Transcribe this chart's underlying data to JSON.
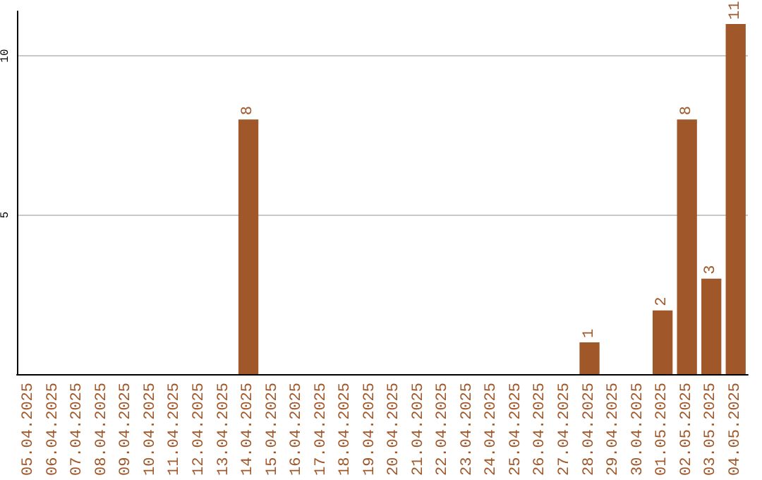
{
  "chart_data": {
    "type": "bar",
    "categories": [
      "05.04.2025",
      "06.04.2025",
      "07.04.2025",
      "08.04.2025",
      "09.04.2025",
      "10.04.2025",
      "11.04.2025",
      "12.04.2025",
      "13.04.2025",
      "14.04.2025",
      "15.04.2025",
      "16.04.2025",
      "17.04.2025",
      "18.04.2025",
      "19.04.2025",
      "20.04.2025",
      "21.04.2025",
      "22.04.2025",
      "23.04.2025",
      "24.04.2025",
      "25.04.2025",
      "26.04.2025",
      "27.04.2025",
      "28.04.2025",
      "29.04.2025",
      "30.04.2025",
      "01.05.2025",
      "02.05.2025",
      "03.05.2025",
      "04.05.2025"
    ],
    "values": [
      0,
      0,
      0,
      0,
      0,
      0,
      0,
      0,
      0,
      8,
      0,
      0,
      0,
      0,
      0,
      0,
      0,
      0,
      0,
      0,
      0,
      0,
      0,
      1,
      0,
      0,
      2,
      8,
      3,
      11
    ],
    "value_labels": [
      null,
      null,
      null,
      null,
      null,
      null,
      null,
      null,
      null,
      "8",
      null,
      null,
      null,
      null,
      null,
      null,
      null,
      null,
      null,
      null,
      null,
      null,
      null,
      "1",
      null,
      null,
      "2",
      "8",
      "3",
      "11"
    ],
    "color": "#a0582a",
    "ylim": [
      0,
      11.4
    ],
    "yticks": [
      5,
      10
    ],
    "grid": "y"
  }
}
